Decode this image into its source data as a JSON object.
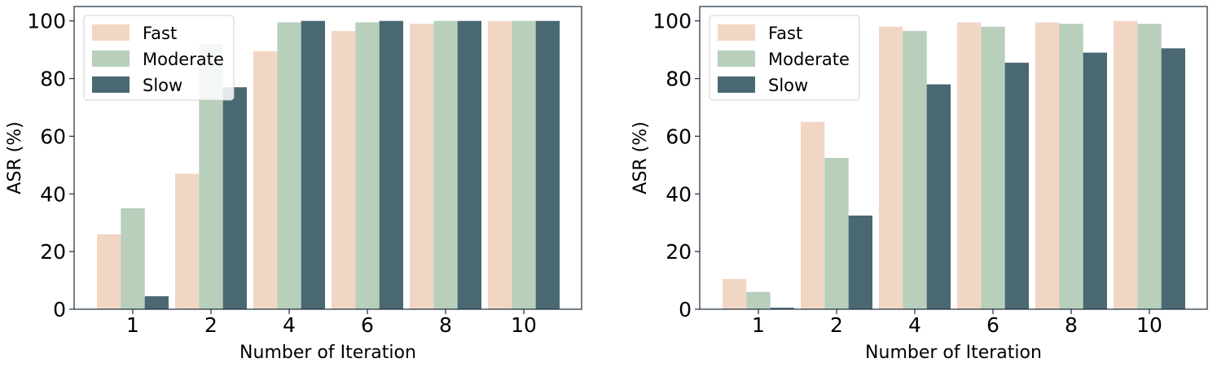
{
  "chart_data": [
    {
      "type": "bar",
      "categories": [
        "1",
        "2",
        "4",
        "6",
        "8",
        "10"
      ],
      "series": [
        {
          "name": "Fast",
          "color": "#f2d6c4",
          "values": [
            26,
            47,
            89.5,
            96.5,
            99,
            100
          ]
        },
        {
          "name": "Moderate",
          "color": "#b7cfbb",
          "values": [
            35,
            92,
            99.5,
            99.5,
            100,
            100
          ]
        },
        {
          "name": "Slow",
          "color": "#4a6872",
          "values": [
            4.5,
            77,
            100,
            100,
            100,
            100
          ]
        }
      ],
      "xlabel": "Number of Iteration",
      "ylabel": "ASR (%)",
      "ylim": [
        0,
        105
      ],
      "yticks": [
        "0",
        "20",
        "40",
        "60",
        "80",
        "100"
      ],
      "grid": false,
      "legend_position": "top-left"
    },
    {
      "type": "bar",
      "categories": [
        "1",
        "2",
        "4",
        "6",
        "8",
        "10"
      ],
      "series": [
        {
          "name": "Fast",
          "color": "#f2d6c4",
          "values": [
            10.5,
            65,
            98,
            99.5,
            99.5,
            100
          ]
        },
        {
          "name": "Moderate",
          "color": "#b7cfbb",
          "values": [
            6,
            52.5,
            96.5,
            98,
            99,
            99
          ]
        },
        {
          "name": "Slow",
          "color": "#4a6872",
          "values": [
            0.5,
            32.5,
            78,
            85.5,
            89,
            90.5
          ]
        }
      ],
      "xlabel": "Number of Iteration",
      "ylabel": "ASR (%)",
      "ylim": [
        0,
        105
      ],
      "yticks": [
        "0",
        "20",
        "40",
        "60",
        "80",
        "100"
      ],
      "grid": false,
      "legend_position": "top-left"
    }
  ]
}
